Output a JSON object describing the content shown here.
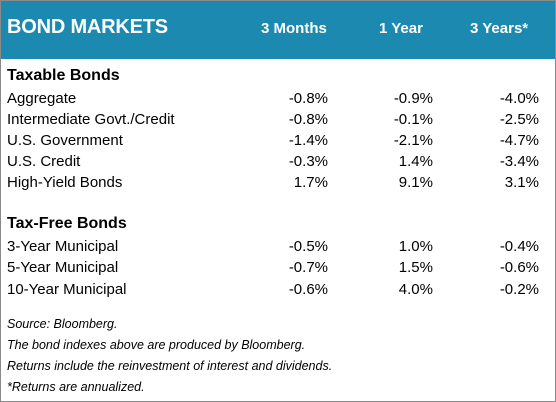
{
  "header": {
    "title": "BOND MARKETS",
    "col1": "3 Months",
    "col2": "1 Year",
    "col3": "3 Years*"
  },
  "taxable": {
    "title": "Taxable Bonds",
    "rows": [
      {
        "label": "Aggregate",
        "m3": "-0.8%",
        "y1": "-0.9%",
        "y3": "-4.0%"
      },
      {
        "label": "Intermediate Govt./Credit",
        "m3": "-0.8%",
        "y1": "-0.1%",
        "y3": "-2.5%"
      },
      {
        "label": "U.S. Government",
        "m3": "-1.4%",
        "y1": "-2.1%",
        "y3": "-4.7%"
      },
      {
        "label": "U.S. Credit",
        "m3": "-0.3%",
        "y1": "1.4%",
        "y3": "-3.4%"
      },
      {
        "label": "High-Yield Bonds",
        "m3": "1.7%",
        "y1": "9.1%",
        "y3": "3.1%"
      }
    ]
  },
  "taxfree": {
    "title": "Tax-Free Bonds",
    "rows": [
      {
        "label": "3-Year Municipal",
        "m3": "-0.5%",
        "y1": "1.0%",
        "y3": "-0.4%"
      },
      {
        "label": "5-Year Municipal",
        "m3": "-0.7%",
        "y1": "1.5%",
        "y3": "-0.6%"
      },
      {
        "label": "10-Year Municipal",
        "m3": "-0.6%",
        "y1": "4.0%",
        "y3": "-0.2%"
      }
    ]
  },
  "notes": [
    "Source: Bloomberg.",
    "The bond indexes above are produced by Bloomberg.",
    "Returns include the reinvestment of interest and dividends.",
    "*Returns are annualized."
  ]
}
